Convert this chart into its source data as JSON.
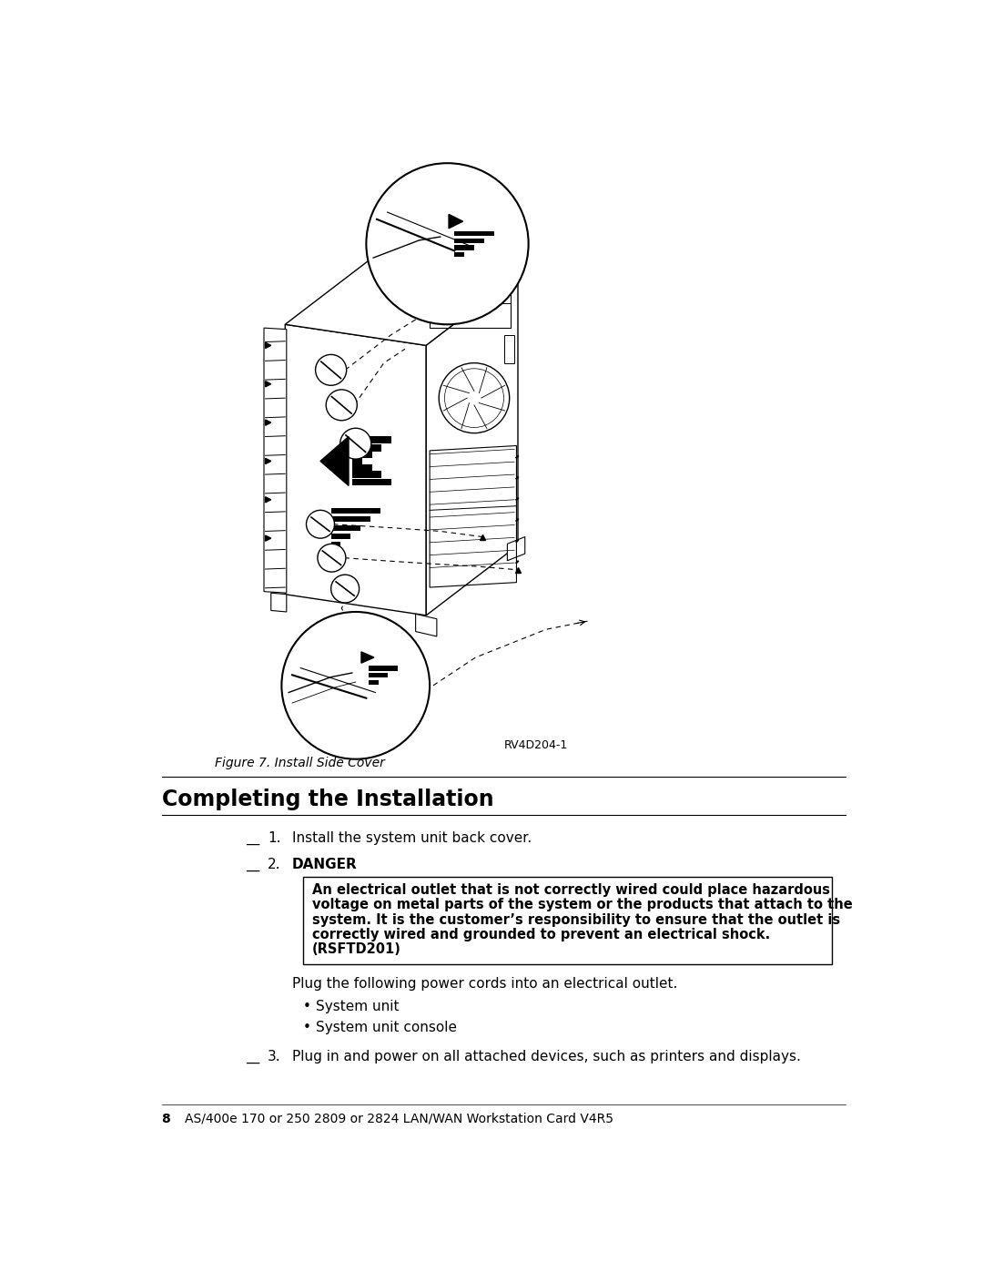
{
  "page_bg": "#ffffff",
  "fig_width": 10.8,
  "fig_height": 13.97,
  "figure_label": "Figure 7. Install Side Cover",
  "figure_ref": "RV4D204-1",
  "section_title": "Completing the Installation",
  "danger_text_lines": [
    "An electrical outlet that is not correctly wired could place hazardous",
    "voltage on metal parts of the system or the products that attach to the",
    "system. It is the customer’s responsibility to ensure that the outlet is",
    "correctly wired and grounded to prevent an electrical shock.",
    "(RSFTD201)"
  ],
  "plug_intro": "Plug the following power cords into an electrical outlet.",
  "bullets": [
    "System unit",
    "System unit console"
  ],
  "footer_num": "8",
  "footer_text": "AS/400e 170 or 250 2809 or 2824 LAN/WAN Workstation Card V4R5"
}
